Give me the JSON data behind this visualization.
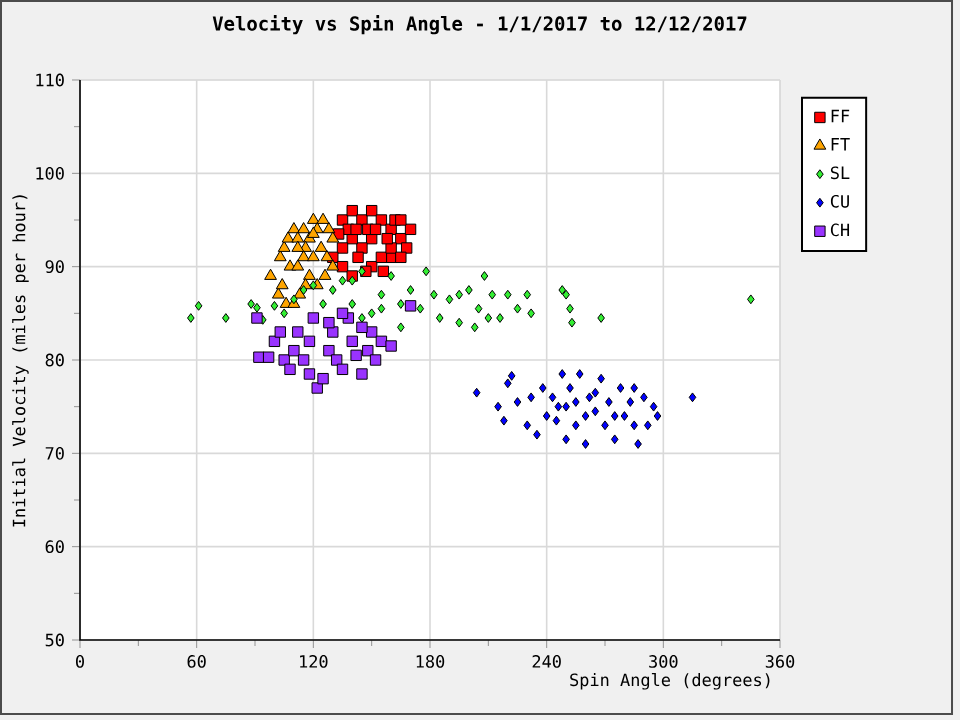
{
  "chart_data": {
    "type": "scatter",
    "title": "Velocity vs Spin Angle - 1/1/2017 to 12/12/2017",
    "xlabel": "Spin Angle (degrees)",
    "ylabel": "Initial Velocity (miles per hour)",
    "xlim": [
      0,
      360
    ],
    "xticks": [
      0,
      60,
      120,
      180,
      240,
      300,
      360
    ],
    "ylim": [
      50,
      110
    ],
    "yticks": [
      50,
      60,
      70,
      80,
      90,
      100,
      110
    ],
    "grid": true,
    "legend": "top right",
    "series": [
      {
        "name": "FF",
        "color": "#ff0000",
        "marker": "square",
        "x": [
          135,
          140,
          145,
          150,
          155,
          160,
          165,
          170,
          168,
          160,
          150,
          145,
          140,
          135,
          130,
          135,
          140,
          150,
          155,
          160,
          165,
          138,
          142,
          148,
          152,
          158,
          143,
          147,
          162,
          133,
          156,
          165
        ],
        "values": [
          95,
          96,
          95,
          96,
          95,
          94,
          93,
          94,
          92,
          91,
          93,
          92,
          93,
          92,
          91,
          90,
          89,
          90,
          91,
          92,
          91,
          94,
          94,
          94,
          94,
          93,
          91,
          89.5,
          95,
          93.5,
          89.5,
          95
        ]
      },
      {
        "name": "FT",
        "color": "#ffa500",
        "marker": "triangle",
        "x": [
          98,
          102,
          104,
          103,
          105,
          107,
          110,
          112,
          115,
          118,
          120,
          122,
          125,
          128,
          130,
          108,
          112,
          115,
          118,
          120,
          124,
          127,
          130,
          106,
          110,
          113,
          116,
          122,
          126,
          120,
          116,
          112
        ],
        "values": [
          89,
          87,
          88,
          91,
          92,
          93,
          94,
          93,
          94,
          93,
          95,
          94,
          95,
          94,
          93,
          90,
          90,
          91,
          89,
          91,
          92,
          91,
          90,
          86,
          86,
          87,
          88,
          88,
          89,
          93.5,
          92,
          92
        ]
      },
      {
        "name": "SL",
        "color": "#33ee33",
        "marker": "diamond",
        "x": [
          57,
          61,
          75,
          88,
          91,
          94,
          100,
          105,
          110,
          115,
          120,
          125,
          130,
          135,
          140,
          145,
          150,
          155,
          160,
          165,
          170,
          175,
          178,
          182,
          185,
          190,
          195,
          200,
          203,
          205,
          208,
          210,
          212,
          216,
          220,
          225,
          230,
          232,
          248,
          250,
          252,
          253,
          268,
          345,
          145,
          165,
          195,
          140,
          155
        ],
        "values": [
          84.5,
          85.8,
          84.5,
          86,
          85.6,
          84.3,
          85.8,
          85,
          86.5,
          87.5,
          88,
          86,
          87.5,
          88.5,
          86,
          89.5,
          85,
          87,
          89,
          86,
          87.5,
          85.5,
          89.5,
          87,
          84.5,
          86.5,
          87,
          87.5,
          83.5,
          85.5,
          89,
          84.5,
          87,
          84.5,
          87,
          85.5,
          87,
          85,
          87.5,
          87,
          85.5,
          84,
          84.5,
          86.5,
          84.5,
          83.5,
          84,
          88.5,
          85.5
        ]
      },
      {
        "name": "CU",
        "color": "#0000ff",
        "marker": "diamond",
        "x": [
          204,
          215,
          218,
          220,
          222,
          225,
          230,
          232,
          235,
          238,
          240,
          243,
          246,
          248,
          250,
          252,
          255,
          257,
          260,
          262,
          265,
          268,
          270,
          272,
          275,
          278,
          280,
          283,
          285,
          287,
          290,
          292,
          295,
          297,
          315,
          245,
          255,
          265,
          275,
          285,
          260,
          250
        ],
        "values": [
          76.5,
          75,
          73.5,
          77.5,
          78.3,
          75.5,
          73,
          76,
          72,
          77,
          74,
          76,
          75,
          78.5,
          71.5,
          77,
          73,
          78.5,
          71,
          76,
          74.5,
          78,
          73,
          75.5,
          71.5,
          77,
          74,
          75.5,
          77,
          71,
          76,
          73,
          75,
          74,
          76,
          73.5,
          75.5,
          76.5,
          74,
          73,
          74,
          75
        ]
      },
      {
        "name": "CH",
        "color": "#9933ff",
        "marker": "square",
        "x": [
          91,
          92,
          97,
          100,
          103,
          105,
          108,
          110,
          112,
          115,
          118,
          120,
          122,
          125,
          128,
          130,
          132,
          135,
          138,
          140,
          142,
          145,
          148,
          150,
          152,
          155,
          160,
          170,
          118,
          128,
          135,
          145
        ],
        "values": [
          84.5,
          80.3,
          80.3,
          82,
          83,
          80,
          79,
          81,
          83,
          80,
          82,
          84.5,
          77,
          78,
          81,
          83,
          80,
          79,
          84.5,
          82,
          80.5,
          78.5,
          81,
          83,
          80,
          82,
          81.5,
          85.8,
          78.5,
          84,
          85,
          83.5
        ]
      }
    ]
  }
}
